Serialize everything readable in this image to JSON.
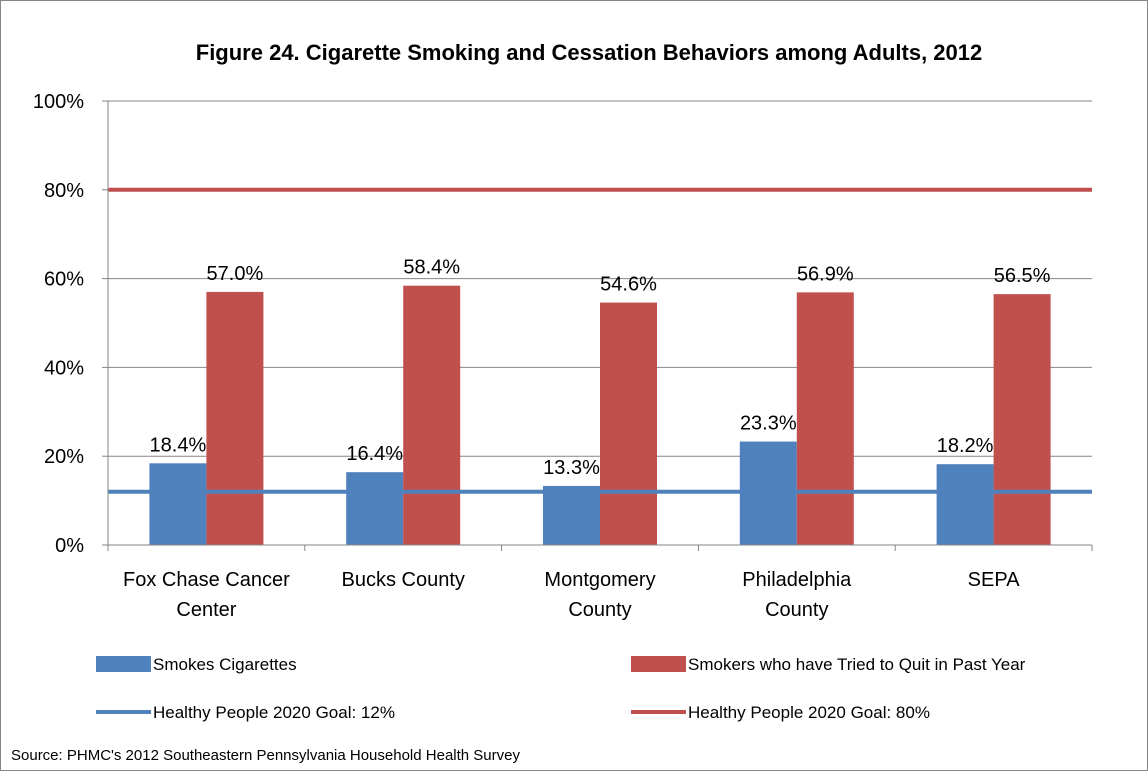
{
  "chart_data": {
    "type": "bar",
    "title": "Figure 24. Cigarette Smoking and Cessation Behaviors among Adults, 2012",
    "categories": [
      [
        "Fox Chase Cancer",
        "Center"
      ],
      [
        "Bucks County"
      ],
      [
        "Montgomery",
        "County"
      ],
      [
        "Philadelphia",
        "County"
      ],
      [
        "SEPA"
      ]
    ],
    "series": [
      {
        "name": "Smokes Cigarettes",
        "color": "#4F81BD",
        "values": [
          18.4,
          16.4,
          13.3,
          23.3,
          18.2
        ],
        "labels": [
          "18.4%",
          "16.4%",
          "13.3%",
          "23.3%",
          "18.2%"
        ]
      },
      {
        "name": "Smokers who have Tried to Quit in Past Year",
        "color": "#C0504D",
        "values": [
          57.0,
          58.4,
          54.6,
          56.9,
          56.5
        ],
        "labels": [
          "57.0%",
          "58.4%",
          "54.6%",
          "56.9%",
          "56.5%"
        ]
      }
    ],
    "goal_lines": [
      {
        "name": "Healthy People 2020 Goal: 12%",
        "value": 12,
        "color": "#4F81BD"
      },
      {
        "name": "Healthy People 2020 Goal: 80%",
        "value": 80,
        "color": "#C0504D"
      }
    ],
    "ylim": [
      0,
      100
    ],
    "yticks": [
      0,
      20,
      40,
      60,
      80,
      100
    ],
    "ytick_labels": [
      "0%",
      "20%",
      "40%",
      "60%",
      "80%",
      "100%"
    ],
    "grid": true,
    "legend_position": "bottom",
    "source": "Source: PHMC's  2012 Southeastern Pennsylvania Household Health Survey"
  }
}
